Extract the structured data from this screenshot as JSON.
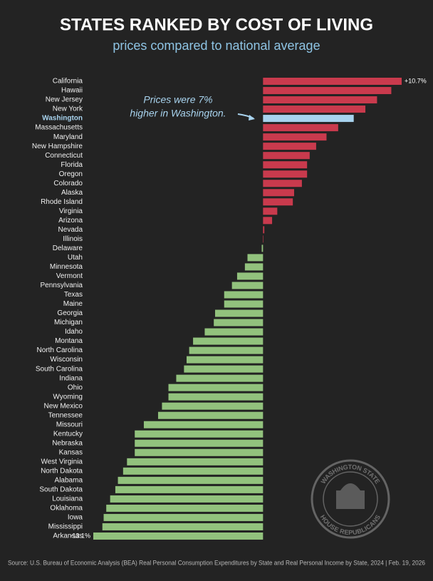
{
  "chart_data": {
    "type": "hbar",
    "title": "STATES RANKED BY COST OF LIVING",
    "subtitle": "prices compared to national average",
    "categories": [
      "California",
      "Hawaii",
      "New Jersey",
      "New York",
      "Washington",
      "Massachusetts",
      "Maryland",
      "New Hampshire",
      "Connecticut",
      "Florida",
      "Oregon",
      "Colorado",
      "Alaska",
      "Rhode Island",
      "Virginia",
      "Arizona",
      "Nevada",
      "Illinois",
      "Delaware",
      "Utah",
      "Minnesota",
      "Vermont",
      "Pennsylvania",
      "Texas",
      "Maine",
      "Georgia",
      "Michigan",
      "Idaho",
      "Montana",
      "North Carolina",
      "Wisconsin",
      "South Carolina",
      "Indiana",
      "Ohio",
      "Wyoming",
      "New Mexico",
      "Tennessee",
      "Missouri",
      "Kentucky",
      "Nebraska",
      "Kansas",
      "West Virginia",
      "North Dakota",
      "Alabama",
      "South Dakota",
      "Louisiana",
      "Oklahoma",
      "Iowa",
      "Mississippi",
      "Arkansas"
    ],
    "values": [
      10.7,
      9.9,
      8.8,
      7.9,
      7.0,
      5.8,
      4.9,
      4.1,
      3.6,
      3.4,
      3.4,
      3.0,
      2.4,
      2.3,
      1.1,
      0.7,
      0.1,
      0.0,
      -0.1,
      -1.2,
      -1.4,
      -2.0,
      -2.4,
      -3.0,
      -3.0,
      -3.7,
      -3.8,
      -4.5,
      -5.4,
      -5.7,
      -5.9,
      -6.1,
      -6.7,
      -7.3,
      -7.3,
      -7.8,
      -8.1,
      -9.2,
      -9.9,
      -9.9,
      -9.9,
      -10.5,
      -10.8,
      -11.2,
      -11.4,
      -11.8,
      -12.1,
      -12.3,
      -12.4,
      -13.1
    ],
    "value_labels": [
      "+10.7%",
      null,
      null,
      null,
      null,
      null,
      null,
      null,
      null,
      null,
      null,
      null,
      null,
      null,
      null,
      null,
      null,
      null,
      null,
      null,
      null,
      null,
      null,
      null,
      null,
      null,
      null,
      null,
      null,
      null,
      null,
      null,
      null,
      null,
      null,
      null,
      null,
      null,
      null,
      null,
      null,
      null,
      null,
      null,
      null,
      null,
      null,
      null,
      null,
      "-13.1%"
    ],
    "colors": {
      "positive": "#c93a4d",
      "negative": "#92c27d",
      "highlight": "#a8d3ee"
    },
    "highlight": "Washington",
    "annotation": [
      "Prices were 7%",
      "higher in Washington."
    ],
    "logo": {
      "top": "WASHINGTON STATE",
      "bottom": "HOUSE REPUBLICANS"
    },
    "source": "Source: U.S. Bureau of Economic Analysis (BEA) Real Personal Consumption Expenditures by State and Real Personal Income by State, 2024 | Feb. 19, 2026"
  }
}
